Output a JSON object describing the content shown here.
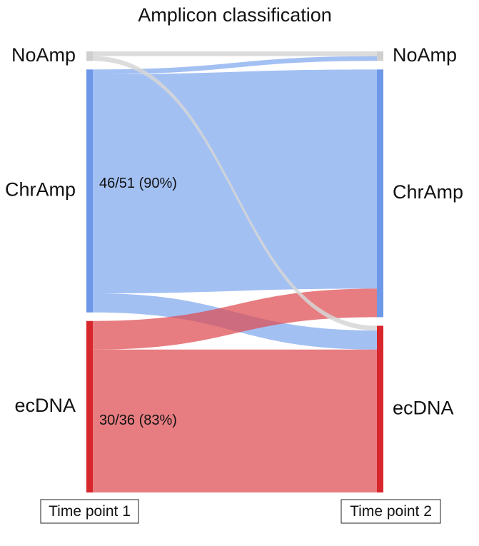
{
  "chart_data": {
    "type": "sankey",
    "title": "Amplicon classification",
    "time_points": [
      "Time point 1",
      "Time point 2"
    ],
    "categories": [
      "NoAmp",
      "ChrAmp",
      "ecDNA"
    ],
    "colors": {
      "NoAmp": "#cfcfcf",
      "ChrAmp": "#6d98e8",
      "ecDNA": "#d7262c"
    },
    "flow_colors": {
      "NoAmp": "#d6d6d6",
      "ChrAmp": "#7fa7ef",
      "ecDNA": "#de4b50"
    },
    "flows": [
      {
        "from": "NoAmp",
        "to": "NoAmp",
        "value": 1
      },
      {
        "from": "NoAmp",
        "to": "ecDNA",
        "value": 1
      },
      {
        "from": "ChrAmp",
        "to": "NoAmp",
        "value": 1
      },
      {
        "from": "ChrAmp",
        "to": "ChrAmp",
        "value": 46
      },
      {
        "from": "ChrAmp",
        "to": "ecDNA",
        "value": 4
      },
      {
        "from": "ecDNA",
        "to": "ChrAmp",
        "value": 6
      },
      {
        "from": "ecDNA",
        "to": "ecDNA",
        "value": 30
      }
    ],
    "flow_labels": [
      {
        "from": "ChrAmp",
        "to": "ChrAmp",
        "text": "46/51 (90%)"
      },
      {
        "from": "ecDNA",
        "to": "ecDNA",
        "text": "30/36 (83%)"
      }
    ]
  }
}
